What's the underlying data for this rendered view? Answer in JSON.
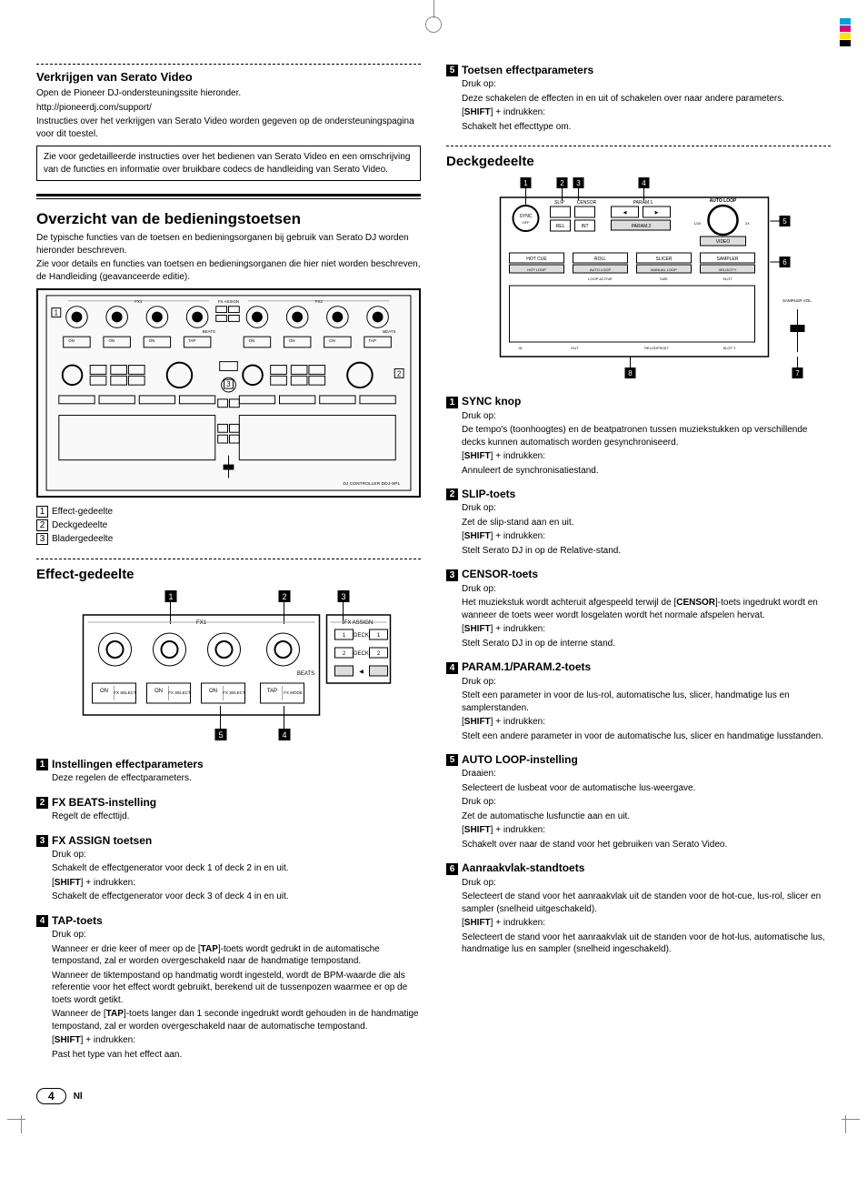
{
  "crop_colors": [
    "#00a0e0",
    "#e0007a",
    "#ffe000",
    "#000000"
  ],
  "left": {
    "serato_video": {
      "title": "Verkrijgen van Serato Video",
      "p1": "Open de Pioneer DJ-ondersteuningssite hieronder.",
      "p2": "http://pioneerdj.com/support/",
      "p3": "Instructies over het verkrijgen van Serato Video worden gegeven op de ondersteuningspagina voor dit toestel.",
      "note": "Zie voor gedetailleerde instructies over het bedienen van Serato Video en een omschrijving van de functies en informatie over bruikbare codecs de handleiding van Serato Video."
    },
    "overview": {
      "title": "Overzicht van de bedieningstoetsen",
      "p1": "De typische functies van de toetsen en bedieningsorganen bij gebruik van Serato DJ worden hieronder beschreven.",
      "p2": "Zie voor details en functies van toetsen en bedieningsorganen die hier niet worden beschreven, de Handleiding (geavanceerde editie).",
      "main_diagram": {
        "labels": {
          "fx1": "FX1",
          "fx2": "FX2",
          "fx_assign": "FX ASSIGN",
          "beats": "BEATS",
          "on": "ON",
          "fx_select": "FX SELECT",
          "tap": "TAP",
          "fx_mode": "FX MODE",
          "ddj": "DJ CONTROLLER   DDJ-SP1"
        },
        "callouts": [
          "1",
          "2",
          "3"
        ]
      },
      "legend": [
        {
          "n": "1",
          "label": "Effect-gedeelte"
        },
        {
          "n": "2",
          "label": "Deckgedeelte"
        },
        {
          "n": "3",
          "label": "Bladergedeelte"
        }
      ]
    },
    "effect_section": {
      "title": "Effect-gedeelte",
      "diagram": {
        "labels": {
          "fx1": "FX1",
          "fx_assign": "FX ASSIGN",
          "deck": "DECK",
          "beats": "BEATS",
          "on": "ON",
          "fx_select": "FX SELECT",
          "tap": "TAP",
          "fx_mode": "FX MODE"
        },
        "callouts": [
          "1",
          "2",
          "3",
          "4",
          "5"
        ]
      },
      "items": [
        {
          "n": "1",
          "title": "Instellingen effectparameters",
          "body": [
            {
              "t": "Deze regelen de effectparameters."
            }
          ]
        },
        {
          "n": "2",
          "title": "FX BEATS-instelling",
          "body": [
            {
              "t": "Regelt de effecttijd."
            }
          ]
        },
        {
          "n": "3",
          "title": "FX ASSIGN toetsen",
          "body": [
            {
              "t": "Druk op:"
            },
            {
              "t": "Schakelt de effectgenerator voor deck 1 of deck 2 in en uit."
            },
            {
              "shift": true,
              "t": " + indrukken:"
            },
            {
              "t": "Schakelt de effectgenerator voor deck 3 of deck 4 in en uit."
            }
          ]
        },
        {
          "n": "4",
          "title": "TAP-toets",
          "body": [
            {
              "t": "Druk op:"
            },
            {
              "t": "Wanneer er drie keer of meer op de [TAP]-toets wordt gedrukt in de automatische tempostand, zal er worden overgeschakeld naar de handmatige tempostand."
            },
            {
              "t": "Wanneer de tiktempostand op handmatig wordt ingesteld, wordt de BPM-waarde die als referentie voor het effect wordt gebruikt, berekend uit de tussenpozen waarmee er op de toets wordt getikt."
            },
            {
              "t": "Wanneer de [TAP]-toets langer dan 1 seconde ingedrukt wordt gehouden in de handmatige tempostand, zal er worden overgeschakeld naar de automatische tempostand."
            },
            {
              "shift": true,
              "t": " + indrukken:"
            },
            {
              "t": "Past het type van het effect aan."
            }
          ]
        }
      ]
    }
  },
  "right": {
    "effect_cont": {
      "n": "5",
      "title": "Toetsen effectparameters",
      "body": [
        {
          "t": "Druk op:"
        },
        {
          "t": "Deze schakelen de effecten in en uit of schakelen over naar andere parameters."
        },
        {
          "shift": true,
          "t": " + indrukken:"
        },
        {
          "t": "Schakelt het effecttype om."
        }
      ]
    },
    "deck_section": {
      "title": "Deckgedeelte",
      "diagram": {
        "labels": {
          "sync": "SYNC",
          "off": "OFF",
          "slip": "SLIP",
          "censor": "CENSOR",
          "rel": "REL",
          "int": "INT",
          "param1": "PARAM.1",
          "param2": "PARAM.2",
          "auto_loop": "AUTO LOOP",
          "half": "1/2X",
          "dbl": "2X",
          "video": "VIDEO",
          "hot_cue": "HOT CUE",
          "roll": "ROLL",
          "slicer": "SLICER",
          "sampler": "SAMPLER",
          "hot_loop": "HOT LOOP",
          "auto_loopb": "AUTO LOOP",
          "manual": "MANUAL LOOP",
          "velocity": "VELOCITY",
          "loop_active": "LOOP ACTIVE",
          "size": "SIZE",
          "slot": "SLOT",
          "in": "IN",
          "out": "OUT",
          "reloop": "RELOOP/EXIT",
          "sloty": "SLOT Y",
          "sampler_vol": "SAMPLER VOL."
        },
        "callouts": [
          "1",
          "2",
          "3",
          "4",
          "5",
          "6",
          "7",
          "8"
        ]
      },
      "items": [
        {
          "n": "1",
          "title": "SYNC knop",
          "body": [
            {
              "t": "Druk op:"
            },
            {
              "t": "De tempo's (toonhoogtes) en de beatpatronen tussen muziekstukken op verschillende decks kunnen automatisch worden gesynchroniseerd."
            },
            {
              "shift": true,
              "t": " + indrukken:"
            },
            {
              "t": "Annuleert de synchronisatiestand."
            }
          ]
        },
        {
          "n": "2",
          "title": "SLIP-toets",
          "body": [
            {
              "t": "Druk op:"
            },
            {
              "t": "Zet de slip-stand aan en uit."
            },
            {
              "shift": true,
              "t": " + indrukken:"
            },
            {
              "t": "Stelt Serato DJ in op de Relative-stand."
            }
          ]
        },
        {
          "n": "3",
          "title": "CENSOR-toets",
          "body": [
            {
              "t": "Druk op:"
            },
            {
              "t": "Het muziekstuk wordt achteruit afgespeeld terwijl de [CENSOR]-toets ingedrukt wordt en wanneer de toets weer wordt losgelaten wordt het normale afspelen hervat."
            },
            {
              "shift": true,
              "t": " + indrukken:"
            },
            {
              "t": "Stelt Serato DJ in op de interne stand."
            }
          ]
        },
        {
          "n": "4",
          "title": "PARAM.1/PARAM.2-toets",
          "body": [
            {
              "t": "Druk op:"
            },
            {
              "t": "Stelt een parameter in voor de lus-rol, automatische lus, slicer, handmatige lus en samplerstanden."
            },
            {
              "shift": true,
              "t": " + indrukken:"
            },
            {
              "t": "Stelt een andere parameter in voor de automatische lus, slicer en handmatige lusstanden."
            }
          ]
        },
        {
          "n": "5",
          "title": "AUTO LOOP-instelling",
          "body": [
            {
              "t": "Draaien:"
            },
            {
              "t": "Selecteert de lusbeat voor de automatische lus-weergave."
            },
            {
              "t": "Druk op:"
            },
            {
              "t": "Zet de automatische lusfunctie aan en uit."
            },
            {
              "shift": true,
              "t": " + indrukken:"
            },
            {
              "t": "Schakelt over naar de stand voor het gebruiken van Serato Video."
            }
          ]
        },
        {
          "n": "6",
          "title": "Aanraakvlak-standtoets",
          "body": [
            {
              "t": "Druk op:"
            },
            {
              "t": "Selecteert de stand voor het aanraakvlak uit de standen voor de hot-cue, lus-rol, slicer en sampler (snelheid uitgeschakeld)."
            },
            {
              "shift": true,
              "t": " + indrukken:"
            },
            {
              "t": "Selecteert de stand voor het aanraakvlak uit de standen voor de hot-lus, automatische lus, handmatige lus en sampler (snelheid ingeschakeld)."
            }
          ]
        }
      ]
    }
  },
  "footer": {
    "page": "4",
    "lang": "Nl"
  }
}
